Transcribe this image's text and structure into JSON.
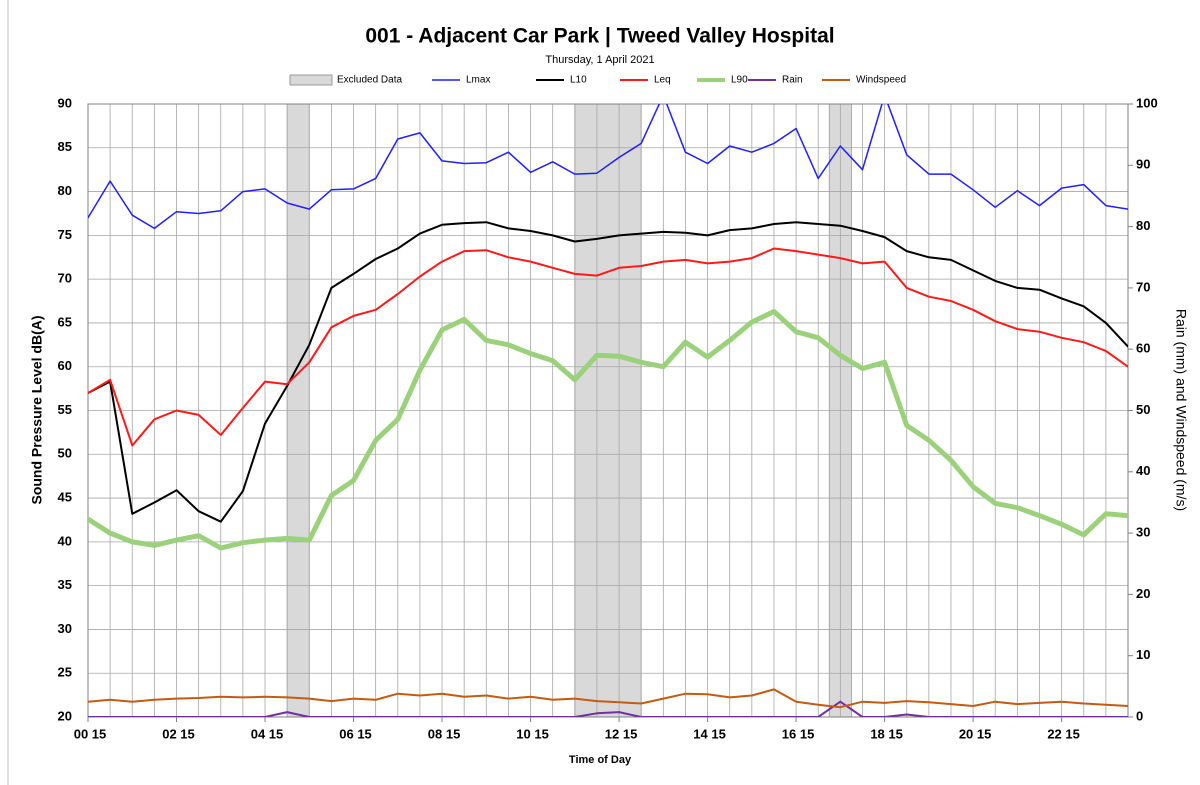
{
  "chart_data": {
    "type": "line",
    "title": "001 - Adjacent Car Park | Tweed Valley Hospital",
    "subtitle": "Thursday, 1 April 2021",
    "xlabel": "Time of Day",
    "ylabel": "Sound Pressure Level dB(A)",
    "y2label": "Rain (mm) and Windspeed (m/s)",
    "excluded_label": "Excluded Data",
    "excluded_color": "#d9d9d9",
    "excluded": [
      [
        4.75,
        5.25
      ],
      [
        11.25,
        12.75
      ],
      [
        17.0,
        17.5
      ]
    ],
    "x": [
      0.25,
      0.75,
      1.25,
      1.75,
      2.25,
      2.75,
      3.25,
      3.75,
      4.25,
      4.75,
      5.25,
      5.75,
      6.25,
      6.75,
      7.25,
      7.75,
      8.25,
      8.75,
      9.25,
      9.75,
      10.25,
      10.75,
      11.25,
      11.75,
      12.25,
      12.75,
      13.25,
      13.75,
      14.25,
      14.75,
      15.25,
      15.75,
      16.25,
      16.75,
      17.25,
      17.75,
      18.25,
      18.75,
      19.25,
      19.75,
      20.25,
      20.75,
      21.25,
      21.75,
      22.25,
      22.75,
      23.25,
      23.75
    ],
    "xlim": [
      0.25,
      23.75
    ],
    "xticks": [
      {
        "value": 0.25,
        "label": "00 15"
      },
      {
        "value": 2.25,
        "label": "02 15"
      },
      {
        "value": 4.25,
        "label": "04 15"
      },
      {
        "value": 6.25,
        "label": "06 15"
      },
      {
        "value": 8.25,
        "label": "08 15"
      },
      {
        "value": 10.25,
        "label": "10 15"
      },
      {
        "value": 12.25,
        "label": "12 15"
      },
      {
        "value": 14.25,
        "label": "14 15"
      },
      {
        "value": 16.25,
        "label": "16 15"
      },
      {
        "value": 18.25,
        "label": "18 15"
      },
      {
        "value": 20.25,
        "label": "20 15"
      },
      {
        "value": 22.25,
        "label": "22 15"
      }
    ],
    "ylim": [
      20,
      90
    ],
    "yticks": [
      20,
      25,
      30,
      35,
      40,
      45,
      50,
      55,
      60,
      65,
      70,
      75,
      80,
      85,
      90
    ],
    "y2lim": [
      0,
      100
    ],
    "y2ticks": [
      0,
      10,
      20,
      30,
      40,
      50,
      60,
      70,
      80,
      90,
      100
    ],
    "grid": true,
    "series": [
      {
        "name": "Lmax",
        "color": "#1f1fff",
        "line_width": 1.5,
        "values": [
          77,
          81.2,
          77.3,
          75.8,
          77.7,
          77.5,
          77.8,
          80,
          80.3,
          78.7,
          78,
          80.2,
          80.3,
          81.5,
          86,
          86.7,
          83.5,
          83.2,
          83.3,
          84.5,
          82.2,
          83.4,
          82,
          82.1,
          83.9,
          85.5,
          91,
          84.5,
          83.2,
          85.2,
          84.5,
          85.5,
          87.2,
          81.5,
          85.2,
          82.5,
          91,
          84.2,
          82,
          82,
          80.2,
          78.2,
          80.1,
          78.4,
          80.4,
          80.8,
          78.4,
          78
        ]
      },
      {
        "name": "L10",
        "color": "#000000",
        "line_width": 2,
        "values": [
          57,
          58.3,
          43.2,
          44.5,
          45.9,
          43.5,
          42.3,
          45.8,
          53.5,
          57.8,
          62.5,
          69,
          70.6,
          72.3,
          73.5,
          75.2,
          76.2,
          76.4,
          76.5,
          75.8,
          75.5,
          75,
          74.3,
          74.6,
          75,
          75.2,
          75.4,
          75.3,
          75,
          75.6,
          75.8,
          76.3,
          76.5,
          76.3,
          76.1,
          75.5,
          74.8,
          73.2,
          72.5,
          72.2,
          71,
          69.8,
          69,
          68.8,
          67.8,
          66.9,
          65,
          62.3
        ]
      },
      {
        "name": "Leq",
        "color": "#ff1a1a",
        "line_width": 2,
        "values": [
          57,
          58.5,
          51,
          54,
          55,
          54.5,
          52.2,
          55.3,
          58.3,
          58,
          60.5,
          64.5,
          65.8,
          66.5,
          68.3,
          70.3,
          72,
          73.2,
          73.3,
          72.5,
          72,
          71.3,
          70.6,
          70.4,
          71.3,
          71.5,
          72,
          72.2,
          71.8,
          72,
          72.4,
          73.5,
          73.2,
          72.8,
          72.4,
          71.8,
          72,
          69,
          68,
          67.5,
          66.5,
          65.2,
          64.3,
          64,
          63.3,
          62.8,
          61.8,
          60
        ]
      },
      {
        "name": "L90",
        "color": "#9bd17b",
        "line_width": 5,
        "values": [
          42.6,
          41,
          40,
          39.6,
          40.2,
          40.7,
          39.3,
          39.9,
          40.2,
          40.4,
          40.2,
          45.3,
          47,
          51.6,
          54,
          59.6,
          64.2,
          65.4,
          63,
          62.5,
          61.5,
          60.7,
          58.5,
          61.3,
          61.2,
          60.5,
          60,
          62.8,
          61.1,
          63,
          65.1,
          66.3,
          64,
          63.3,
          61.3,
          59.8,
          60.5,
          53.3,
          51.6,
          49.3,
          46.3,
          44.4,
          43.9,
          43,
          42,
          40.8,
          43.2,
          43
        ]
      },
      {
        "name": "Rain",
        "color": "#7030a0",
        "line_width": 2,
        "axis": "y2",
        "values": [
          0,
          0,
          0,
          0,
          0,
          0,
          0,
          0,
          0,
          0.8,
          0,
          0,
          0,
          0,
          0,
          0,
          0,
          0,
          0,
          0,
          0,
          0,
          0,
          0.6,
          0.8,
          0,
          0,
          0,
          0,
          0,
          0,
          0,
          0,
          0,
          2.5,
          0,
          0,
          0.4,
          0,
          0,
          0,
          0,
          0,
          0,
          0,
          0,
          0,
          0
        ]
      },
      {
        "name": "Windspeed",
        "color": "#c55a11",
        "line_width": 2,
        "axis": "y2",
        "values": [
          2.5,
          2.8,
          2.5,
          2.8,
          3,
          3.1,
          3.3,
          3.2,
          3.3,
          3.2,
          3,
          2.6,
          3,
          2.8,
          3.8,
          3.5,
          3.8,
          3.3,
          3.5,
          3,
          3.3,
          2.8,
          3,
          2.6,
          2.4,
          2.2,
          3,
          3.8,
          3.7,
          3.2,
          3.5,
          4.5,
          2.5,
          2,
          1.6,
          2.5,
          2.3,
          2.6,
          2.4,
          2.1,
          1.8,
          2.5,
          2.1,
          2.3,
          2.5,
          2.2,
          2,
          1.8
        ]
      }
    ]
  }
}
